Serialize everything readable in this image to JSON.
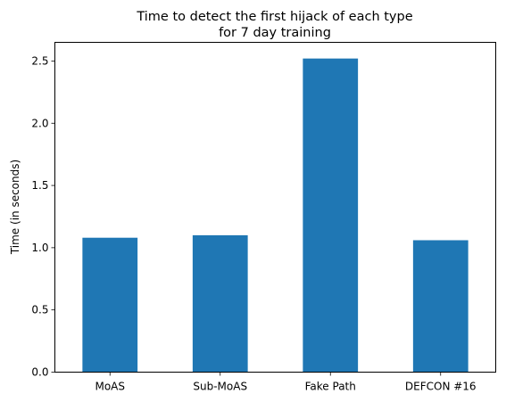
{
  "chart_data": {
    "type": "bar",
    "title_lines": [
      "Time to detect the first hijack of each type",
      "for 7 day training"
    ],
    "xlabel": "",
    "ylabel": "Time (in seconds)",
    "categories": [
      "MoAS",
      "Sub-MoAS",
      "Fake Path",
      "DEFCON #16"
    ],
    "values": [
      1.08,
      1.1,
      2.52,
      1.06
    ],
    "ylim": [
      0,
      2.65
    ],
    "yticks": [
      0.0,
      0.5,
      1.0,
      1.5,
      2.0,
      2.5
    ],
    "ytick_labels": [
      "0.0",
      "0.5",
      "1.0",
      "1.5",
      "2.0",
      "2.5"
    ],
    "bar_color": "#1f77b4",
    "grid": false,
    "legend": "none"
  }
}
